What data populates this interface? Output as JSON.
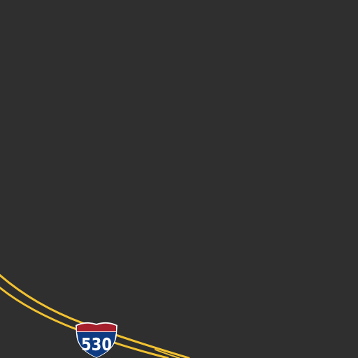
{
  "map": {
    "style": "dark",
    "colors": {
      "background": "#2f2f2f",
      "highway": "#f2c230",
      "shield_top": "#a51f2d",
      "shield_body": "#0e3b82",
      "shield_border": "#ffffff",
      "shield_text": "#ffffff"
    },
    "highway": {
      "type": "interstate",
      "shield_number": "530",
      "lanes": "divided"
    }
  }
}
